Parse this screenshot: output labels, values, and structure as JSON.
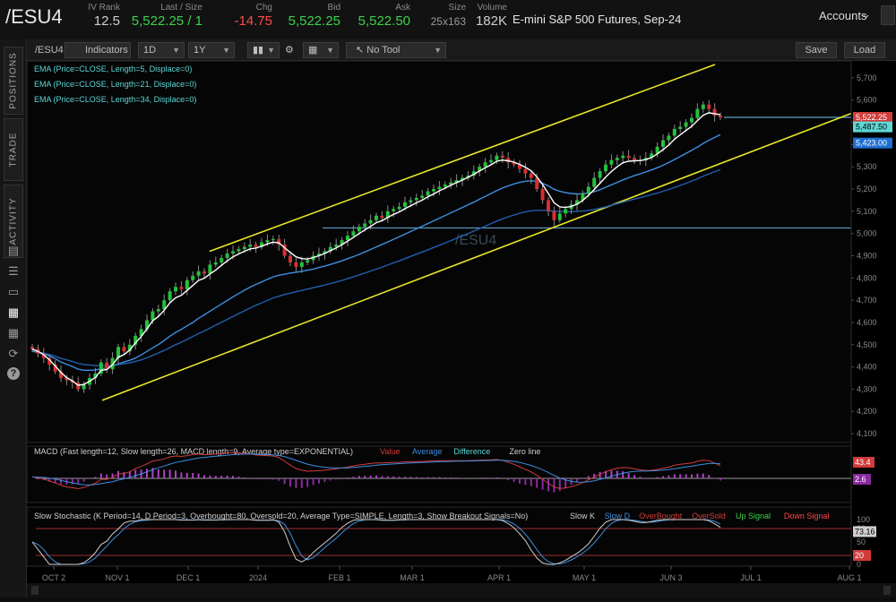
{
  "header": {
    "symbol": "/ESU4",
    "stats": [
      {
        "label": "IV Rank",
        "value": "12.5",
        "color": "#cfcfcf"
      },
      {
        "label": "Last / Size",
        "value": "5,522.25 / 1",
        "color": "#3fd14a"
      },
      {
        "label": "Chg",
        "value": "-14.75",
        "color": "#ff4a4a"
      },
      {
        "label": "Bid",
        "value": "5,522.25",
        "color": "#3fd14a"
      },
      {
        "label": "Ask",
        "value": "5,522.50",
        "color": "#3fd14a"
      },
      {
        "label": "Size",
        "value": "25x163",
        "color": "#9a9a9a"
      },
      {
        "label": "Volume",
        "value": "182K",
        "color": "#cfcfcf"
      }
    ],
    "description": "E-mini S&P 500 Futures, Sep-24",
    "accounts_label": "Accounts"
  },
  "sidebar": {
    "tabs": [
      "POSITIONS",
      "TRADE",
      "ACTIVITY"
    ],
    "icons": [
      "document-icon",
      "list-icon",
      "tv-icon",
      "chart-icon",
      "grid-icon",
      "history-icon",
      "help-icon"
    ]
  },
  "toolbar": {
    "symbol": "/ESU4",
    "indicators": "Indicators",
    "timeframe": "1D",
    "range": "1Y",
    "tool": "No Tool",
    "save": "Save",
    "load": "Load"
  },
  "studies": {
    "ema_lines": [
      "EMA (Price=CLOSE, Length=5, Displace=0)",
      "EMA (Price=CLOSE, Length=21, Displace=0)",
      "EMA (Price=CLOSE, Length=34, Displace=0)"
    ],
    "watermark": "/ESU4",
    "price_tags": [
      {
        "value": "5,522.25",
        "color": "#d23b3b"
      },
      {
        "value": "5,487.50",
        "color": "#5fd7d7"
      },
      {
        "value": "5,423.00",
        "color": "#1f6fd0"
      }
    ],
    "macd_title": "MACD (Fast length=12, Slow length=26, MACD length=9, Average type=EXPONENTIAL)",
    "macd_legend": [
      {
        "text": "Value",
        "color": "#d23b3b"
      },
      {
        "text": "Average",
        "color": "#3d8fe0"
      },
      {
        "text": "Difference",
        "color": "#5fd7d7"
      },
      {
        "text": "Zero line",
        "color": "#cfcfcf"
      }
    ],
    "macd_tags": [
      "43.4",
      "2.6"
    ],
    "stoch_title": "Slow Stochastic (K Period=14, D Period=3, Overbought=80, Oversold=20, Average Type=SIMPLE, Length=3, Show Breakout Signals=No)",
    "stoch_legend": [
      {
        "text": "Slow K",
        "color": "#cfcfcf"
      },
      {
        "text": "Slow D",
        "color": "#3d8fe0"
      },
      {
        "text": "OverBought",
        "color": "#d23b3b"
      },
      {
        "text": "OverSold",
        "color": "#d23b3b"
      },
      {
        "text": "Up Signal",
        "color": "#3fd14a"
      },
      {
        "text": "Down Signal",
        "color": "#ff4a4a"
      }
    ],
    "stoch_tags": [
      "73.16",
      "80",
      "20"
    ]
  },
  "chart_data": {
    "type": "line",
    "title": "",
    "x_ticks": [
      "OCT 2",
      "NOV 1",
      "DEC 1",
      "2024",
      "FEB 1",
      "MAR 1",
      "APR 1",
      "MAY 1",
      "JUN 3",
      "JUL 1",
      "AUG 1"
    ],
    "y_ticks": [
      4100,
      4200,
      4300,
      4400,
      4500,
      4600,
      4700,
      4800,
      4900,
      5000,
      5100,
      5200,
      5300,
      5400,
      5500,
      5600,
      5700
    ],
    "ylim": [
      4060,
      5760
    ],
    "stoch_ticks": [
      100,
      80,
      50,
      20,
      0
    ],
    "horizontal_levels": [
      5522.25,
      5025
    ],
    "price": [
      4480,
      4460,
      4440,
      4410,
      4380,
      4350,
      4340,
      4330,
      4300,
      4320,
      4350,
      4370,
      4420,
      4390,
      4440,
      4490,
      4470,
      4500,
      4540,
      4570,
      4610,
      4650,
      4660,
      4700,
      4740,
      4760,
      4750,
      4790,
      4810,
      4830,
      4820,
      4860,
      4870,
      4890,
      4910,
      4920,
      4930,
      4940,
      4950,
      4940,
      4960,
      4970,
      4975,
      4950,
      4900,
      4870,
      4850,
      4870,
      4880,
      4900,
      4910,
      4920,
      4940,
      4950,
      4970,
      4990,
      5010,
      5030,
      5045,
      5060,
      5080,
      5070,
      5100,
      5110,
      5120,
      5140,
      5150,
      5160,
      5170,
      5190,
      5200,
      5210,
      5220,
      5230,
      5240,
      5250,
      5260,
      5280,
      5300,
      5320,
      5330,
      5350,
      5340,
      5320,
      5310,
      5290,
      5270,
      5250,
      5200,
      5150,
      5100,
      5060,
      5090,
      5110,
      5130,
      5150,
      5180,
      5210,
      5250,
      5280,
      5310,
      5330,
      5340,
      5350,
      5340,
      5330,
      5330,
      5340,
      5360,
      5390,
      5420,
      5440,
      5470,
      5480,
      5500,
      5520,
      5560,
      5580,
      5560,
      5530,
      5522
    ],
    "ema5": [
      4480,
      4470,
      4455,
      4432,
      4405,
      4375,
      4352,
      4337,
      4318,
      4321,
      4336,
      4352,
      4385,
      4388,
      4410,
      4444,
      4455,
      4476,
      4508,
      4537,
      4571,
      4608,
      4627,
      4655,
      4688,
      4711,
      4722,
      4744,
      4766,
      4789,
      4799,
      4818,
      4836,
      4857,
      4877,
      4895,
      4908,
      4920,
      4931,
      4934,
      4943,
      4953,
      4961,
      4958,
      4936,
      4915,
      4895,
      4887,
      4885,
      4892,
      4900,
      4910,
      4923,
      4935,
      4950,
      4966,
      4982,
      5000,
      5016,
      5032,
      5049,
      5058,
      5072,
      5086,
      5097,
      5112,
      5125,
      5138,
      5150,
      5165,
      5178,
      5192,
      5204,
      5217,
      5229,
      5240,
      5253,
      5266,
      5281,
      5296,
      5309,
      5325,
      5330,
      5327,
      5321,
      5311,
      5298,
      5282,
      5255,
      5220,
      5180,
      5138,
      5120,
      5117,
      5122,
      5132,
      5149,
      5172,
      5198,
      5226,
      5254,
      5279,
      5300,
      5318,
      5325,
      5327,
      5328,
      5332,
      5342,
      5358,
      5377,
      5398,
      5424,
      5444,
      5463,
      5482,
      5508,
      5532,
      5543,
      5539,
      5534
    ],
    "ema21": [
      4470,
      4465,
      4459,
      4450,
      4437,
      4422,
      4412,
      4402,
      4390,
      4385,
      4385,
      4386,
      4392,
      4395,
      4404,
      4413,
      4422,
      4430,
      4440,
      4454,
      4470,
      4486,
      4501,
      4519,
      4538,
      4555,
      4569,
      4585,
      4600,
      4619,
      4634,
      4651,
      4667,
      4683,
      4699,
      4715,
      4730,
      4745,
      4759,
      4771,
      4782,
      4794,
      4805,
      4812,
      4817,
      4822,
      4826,
      4830,
      4835,
      4840,
      4847,
      4853,
      4861,
      4869,
      4877,
      4887,
      4896,
      4906,
      4917,
      4928,
      4940,
      4951,
      4962,
      4974,
      4985,
      4997,
      5009,
      5021,
      5033,
      5045,
      5057,
      5069,
      5081,
      5093,
      5105,
      5117,
      5129,
      5141,
      5154,
      5167,
      5180,
      5193,
      5205,
      5214,
      5223,
      5230,
      5235,
      5237,
      5234,
      5226,
      5214,
      5199,
      5190,
      5184,
      5180,
      5178,
      5179,
      5182,
      5188,
      5197,
      5208,
      5219,
      5230,
      5241,
      5251,
      5260,
      5268,
      5277,
      5286,
      5296,
      5307,
      5319,
      5333,
      5346,
      5360,
      5374,
      5389,
      5405,
      5419,
      5432,
      5445
    ],
    "ema34": [
      4470,
      4466,
      4462,
      4456,
      4448,
      4439,
      4432,
      4425,
      4416,
      4411,
      4409,
      4406,
      4406,
      4405,
      4407,
      4411,
      4414,
      4418,
      4425,
      4432,
      4441,
      4452,
      4463,
      4474,
      4487,
      4500,
      4511,
      4524,
      4537,
      4550,
      4562,
      4575,
      4588,
      4601,
      4614,
      4627,
      4640,
      4652,
      4665,
      4677,
      4688,
      4699,
      4710,
      4718,
      4726,
      4732,
      4738,
      4744,
      4750,
      4756,
      4762,
      4768,
      4775,
      4782,
      4789,
      4797,
      4805,
      4814,
      4822,
      4831,
      4840,
      4849,
      4858,
      4868,
      4877,
      4887,
      4897,
      4907,
      4917,
      4927,
      4937,
      4947,
      4958,
      4968,
      4979,
      4989,
      5000,
      5011,
      5022,
      5033,
      5045,
      5056,
      5066,
      5075,
      5083,
      5091,
      5097,
      5102,
      5104,
      5104,
      5103,
      5100,
      5099,
      5098,
      5098,
      5099,
      5101,
      5104,
      5108,
      5114,
      5120,
      5127,
      5134,
      5141,
      5148,
      5155,
      5161,
      5168,
      5175,
      5182,
      5190,
      5198,
      5207,
      5216,
      5226,
      5236,
      5246,
      5258,
      5268,
      5278,
      5287
    ]
  }
}
